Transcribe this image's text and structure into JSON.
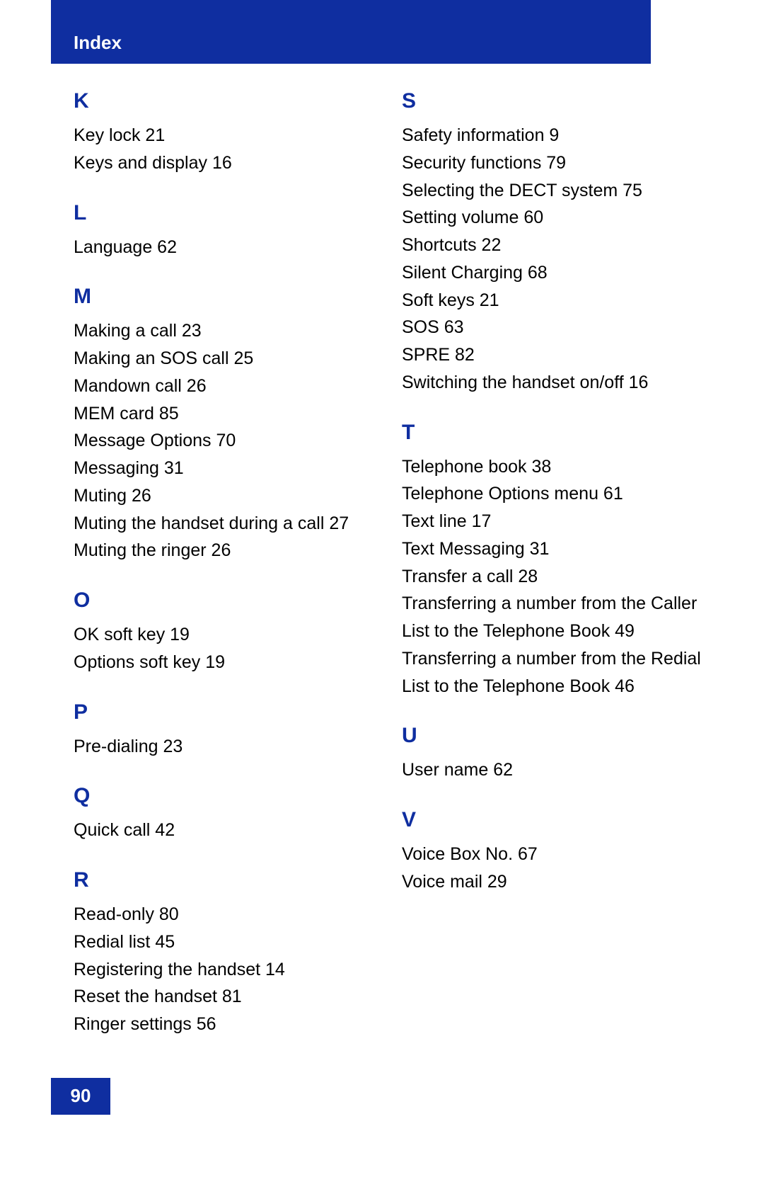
{
  "header": {
    "title": "Index"
  },
  "page_number": "90",
  "colors": {
    "accent": "#0f2ea0",
    "background": "#ffffff",
    "text": "#000000"
  },
  "typography": {
    "heading_fontsize": 30,
    "entry_fontsize": 25,
    "header_fontsize": 26
  },
  "left_column": [
    {
      "letter": "K",
      "entries": [
        "Key lock 21",
        "Keys and display 16"
      ]
    },
    {
      "letter": "L",
      "entries": [
        "Language 62"
      ]
    },
    {
      "letter": "M",
      "entries": [
        "Making a call 23",
        "Making an SOS call 25",
        "Mandown call 26",
        "MEM card 85",
        "Message Options 70",
        "Messaging 31",
        "Muting 26",
        "Muting the handset during a call 27",
        "Muting the ringer 26"
      ]
    },
    {
      "letter": "O",
      "entries": [
        "OK soft key 19",
        "Options soft key 19"
      ]
    },
    {
      "letter": "P",
      "entries": [
        "Pre-dialing 23"
      ]
    },
    {
      "letter": "Q",
      "entries": [
        "Quick call 42"
      ]
    },
    {
      "letter": "R",
      "entries": [
        "Read-only 80",
        "Redial list 45",
        "Registering the handset 14",
        "Reset the handset 81",
        "Ringer settings 56"
      ]
    }
  ],
  "right_column": [
    {
      "letter": "S",
      "entries": [
        "Safety information 9",
        "Security functions 79",
        "Selecting the DECT system 75",
        "Setting volume 60",
        "Shortcuts 22",
        "Silent Charging 68",
        "Soft keys 21",
        "SOS 63",
        "SPRE 82",
        "Switching the handset on/off 16"
      ]
    },
    {
      "letter": "T",
      "entries": [
        "Telephone book 38",
        "Telephone Options menu 61",
        "Text line 17",
        "Text Messaging 31",
        "Transfer a call 28",
        "Transferring a number from the Caller List to the Telephone Book 49",
        "Transferring a number from the Redial List to the Telephone Book 46"
      ]
    },
    {
      "letter": "U",
      "entries": [
        "User name 62"
      ]
    },
    {
      "letter": "V",
      "entries": [
        "Voice Box No. 67",
        "Voice mail 29"
      ]
    }
  ]
}
